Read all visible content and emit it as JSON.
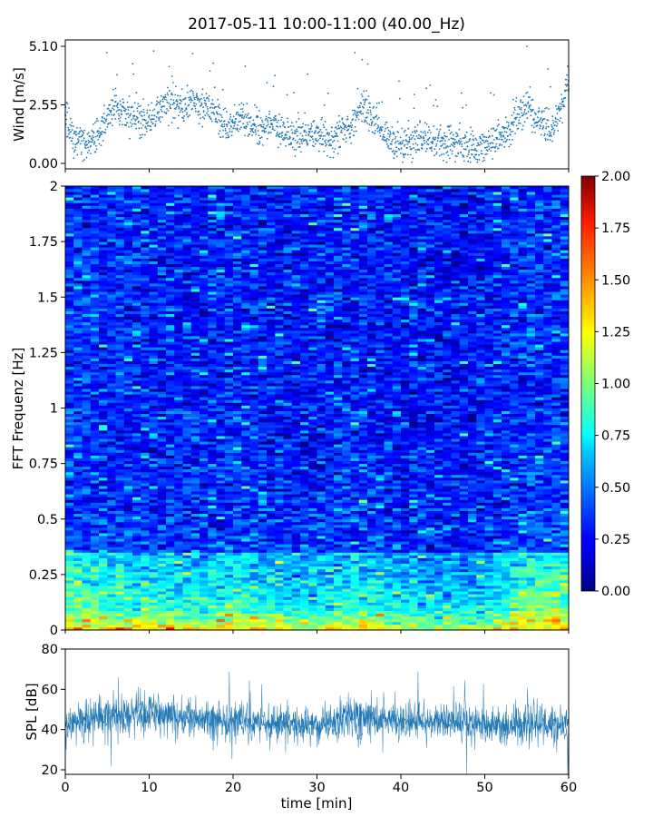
{
  "title": "2017-05-11 10:00-11:00 (40.00_Hz)",
  "chart_data": [
    {
      "type": "scatter",
      "name": "wind",
      "ylabel": "Wind [m/s]",
      "xlim": [
        0,
        60
      ],
      "ylim": [
        0,
        5.1
      ],
      "yticks": [
        0.0,
        2.55,
        5.1
      ],
      "ytick_labels": [
        "0.00",
        "2.55",
        "5.10"
      ],
      "xticks": [
        0,
        10,
        20,
        30,
        40,
        50,
        60
      ],
      "color": "#1f77b4",
      "x": [
        0,
        1,
        2,
        3,
        4,
        5,
        6,
        7,
        8,
        9,
        10,
        11,
        12,
        13,
        14,
        15,
        16,
        17,
        18,
        19,
        20,
        21,
        22,
        23,
        24,
        25,
        26,
        27,
        28,
        29,
        30,
        31,
        32,
        33,
        34,
        35,
        36,
        37,
        38,
        39,
        40,
        41,
        42,
        43,
        44,
        45,
        46,
        47,
        48,
        49,
        50,
        51,
        52,
        53,
        54,
        55,
        56,
        57,
        58,
        59,
        60
      ],
      "y": [
        2.0,
        1.1,
        0.9,
        1.0,
        1.4,
        2.1,
        2.4,
        2.2,
        2.0,
        1.9,
        1.8,
        2.2,
        2.6,
        2.5,
        2.4,
        2.7,
        2.6,
        2.5,
        2.2,
        1.6,
        1.7,
        1.9,
        1.8,
        1.6,
        1.7,
        1.5,
        1.4,
        1.2,
        1.1,
        1.2,
        1.2,
        1.1,
        1.0,
        1.3,
        1.4,
        2.4,
        2.3,
        1.8,
        1.2,
        0.9,
        0.8,
        0.8,
        1.0,
        1.1,
        0.9,
        0.8,
        0.9,
        0.8,
        0.7,
        0.8,
        0.8,
        0.9,
        1.2,
        1.5,
        2.0,
        2.8,
        1.8,
        1.9,
        1.5,
        2.2,
        3.6
      ]
    },
    {
      "type": "heatmap",
      "name": "fft",
      "ylabel": "FFT Frequenz [Hz]",
      "xlim": [
        0,
        60
      ],
      "ylim": [
        0,
        2
      ],
      "yticks": [
        0,
        0.25,
        0.5,
        0.75,
        1,
        1.25,
        1.5,
        1.75,
        2
      ],
      "ytick_labels": [
        "0",
        "0.25",
        "0.5",
        "0.75",
        "1",
        "1.25",
        "1.5",
        "1.75",
        "2"
      ],
      "colormap": "jet",
      "clim": [
        0,
        2
      ],
      "colorbar_ticks": [
        "0.00",
        "0.25",
        "0.50",
        "0.75",
        "1.00",
        "1.25",
        "1.50",
        "1.75",
        "2.00"
      ],
      "time_profile_x": [
        0,
        5,
        10,
        15,
        20,
        25,
        30,
        35,
        40,
        45,
        50,
        55,
        60
      ],
      "time_profile": [
        0.6,
        0.5,
        0.45,
        0.4,
        0.5,
        0.4,
        0.35,
        0.5,
        0.35,
        0.3,
        0.3,
        0.6,
        0.6
      ],
      "freq_profile_y": [
        0,
        0.05,
        0.1,
        0.2,
        0.3,
        0.5,
        0.75,
        1.0,
        1.5,
        2.0
      ],
      "freq_profile": [
        1.6,
        1.1,
        0.8,
        0.55,
        0.45,
        0.4,
        0.38,
        0.35,
        0.35,
        0.35
      ]
    },
    {
      "type": "line",
      "name": "spl",
      "ylabel": "SPL [dB]",
      "xlabel": "time [min]",
      "xlim": [
        0,
        60
      ],
      "ylim": [
        17,
        80
      ],
      "yticks": [
        20,
        40,
        60,
        80
      ],
      "xticks": [
        0,
        10,
        20,
        30,
        40,
        50,
        60
      ],
      "color": "#1f77b4",
      "x": [
        0,
        2,
        4,
        6,
        8,
        10,
        12,
        14,
        16,
        18,
        20,
        22,
        24,
        26,
        28,
        30,
        32,
        34,
        36,
        38,
        40,
        42,
        44,
        46,
        48,
        50,
        52,
        54,
        56,
        58,
        60
      ],
      "mean": [
        43,
        44,
        46,
        47,
        48,
        48,
        47,
        46,
        45,
        44,
        44,
        43,
        43,
        43,
        42,
        42,
        44,
        47,
        46,
        45,
        44,
        44,
        44,
        44,
        43,
        42,
        42,
        43,
        43,
        42,
        43
      ],
      "band": [
        6,
        6,
        7,
        7,
        7,
        7,
        7,
        7,
        6,
        6,
        6,
        6,
        6,
        6,
        6,
        6,
        6,
        7,
        7,
        6,
        6,
        6,
        6,
        6,
        6,
        6,
        6,
        7,
        7,
        6,
        6
      ]
    }
  ]
}
